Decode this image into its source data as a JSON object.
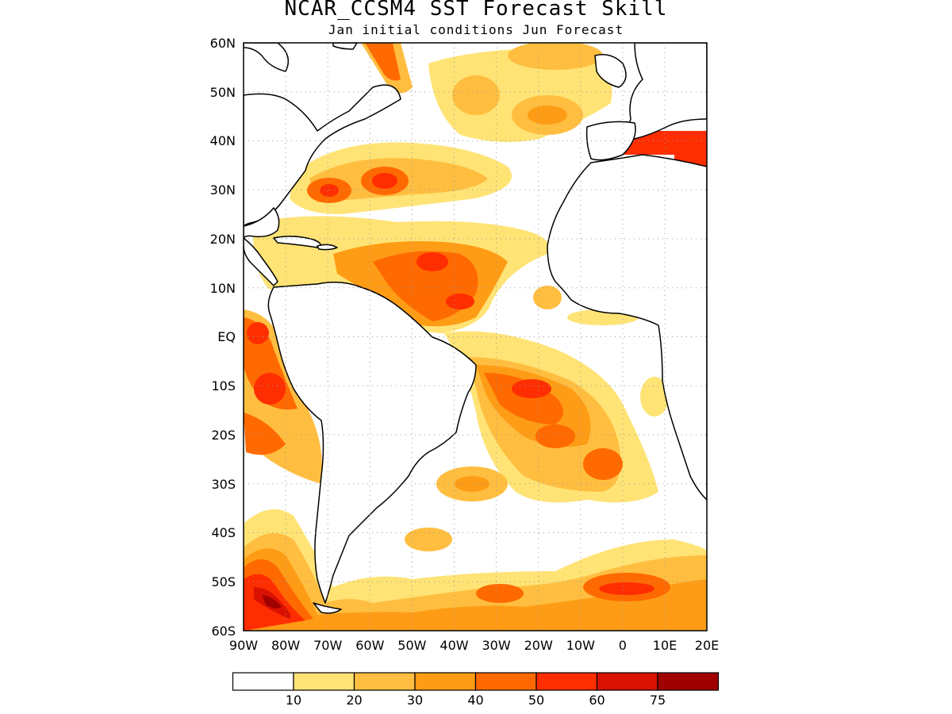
{
  "map": {
    "title": "NCAR_CCSM4 SST Forecast Skill",
    "subtitle": "Jan initial conditions   Jun Forecast",
    "lat_labels": [
      "60N",
      "50N",
      "40N",
      "30N",
      "20N",
      "10N",
      "EQ",
      "10S",
      "20S",
      "30S",
      "40S",
      "50S",
      "60S"
    ],
    "lon_labels": [
      "90W",
      "80W",
      "70W",
      "60W",
      "50W",
      "40W",
      "30W",
      "20W",
      "10W",
      "0",
      "10E",
      "20E"
    ],
    "lat_range": [
      -60,
      60
    ],
    "lon_range": [
      -90,
      20
    ],
    "grid": "dotted",
    "field": "SST forecast skill (shaded)"
  },
  "colorbar": {
    "levels": [
      "10",
      "20",
      "30",
      "40",
      "50",
      "60",
      "75"
    ],
    "colors": [
      "#ffffff",
      "#ffe375",
      "#ffbe40",
      "#ff9c16",
      "#ff6a00",
      "#ff2e00",
      "#d81100",
      "#a00000"
    ]
  }
}
